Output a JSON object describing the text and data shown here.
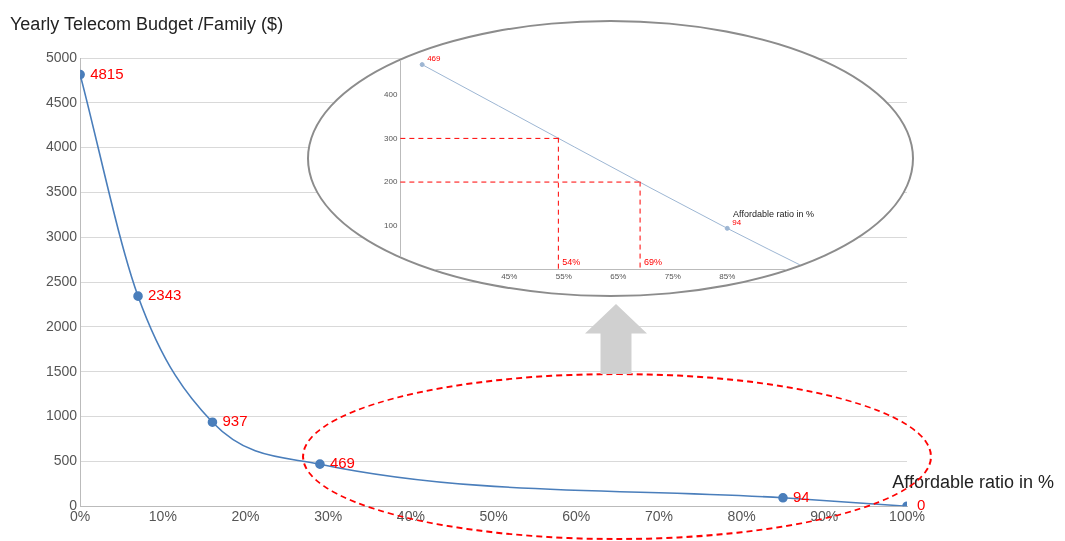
{
  "chart_data": [
    {
      "type": "line",
      "ylabel": "Yearly Telecom Budget /Family ($)",
      "xlabel": "Affordable ratio in %",
      "x": [
        0,
        7,
        16,
        29,
        85,
        100
      ],
      "values": [
        4815,
        2343,
        937,
        469,
        94,
        0
      ],
      "color": "#4a7ebb",
      "marker": "circle",
      "data_labels": true,
      "xlim": [
        0,
        100
      ],
      "xticks": [
        {
          "value": 0,
          "label": "0%"
        },
        {
          "value": 10,
          "label": "10%"
        },
        {
          "value": 20,
          "label": "20%"
        },
        {
          "value": 30,
          "label": "30%"
        },
        {
          "value": 40,
          "label": "40%"
        },
        {
          "value": 50,
          "label": "50%"
        },
        {
          "value": 60,
          "label": "60%"
        },
        {
          "value": 70,
          "label": "70%"
        },
        {
          "value": 80,
          "label": "80%"
        },
        {
          "value": 90,
          "label": "90%"
        },
        {
          "value": 100,
          "label": "100%"
        }
      ],
      "ylim": [
        0,
        5000
      ],
      "yticks": [
        0,
        500,
        1000,
        1500,
        2000,
        2500,
        3000,
        3500,
        4000,
        4500,
        5000
      ],
      "grid": "y"
    },
    {
      "type": "line",
      "xlabel": "Affordable ratio in %",
      "x": [
        29,
        85,
        100
      ],
      "values": [
        469,
        94,
        0
      ],
      "value_labels": [
        "469",
        "94",
        null
      ],
      "color": "#9db6d3",
      "marker": "circle",
      "xlim": [
        25,
        100
      ],
      "xticks": [
        {
          "value": 45,
          "label": "45%"
        },
        {
          "value": 55,
          "label": "55%"
        },
        {
          "value": 65,
          "label": "65%"
        },
        {
          "value": 75,
          "label": "75%"
        },
        {
          "value": 85,
          "label": "85%"
        }
      ],
      "ylim": [
        0,
        480
      ],
      "yticks": [
        100,
        200,
        300,
        400
      ],
      "ref_lines": [
        {
          "axis": "y",
          "value": 300,
          "color": "#ff0000",
          "line_style": "dashed"
        },
        {
          "axis": "y",
          "value": 200,
          "color": "#ff0000",
          "line_style": "dashed"
        },
        {
          "axis": "x",
          "value": 54,
          "label": "54%",
          "color": "#ff0000",
          "line_style": "dashed"
        },
        {
          "axis": "x",
          "value": 69,
          "label": "69%",
          "color": "#ff0000",
          "line_style": "dashed"
        }
      ]
    }
  ]
}
